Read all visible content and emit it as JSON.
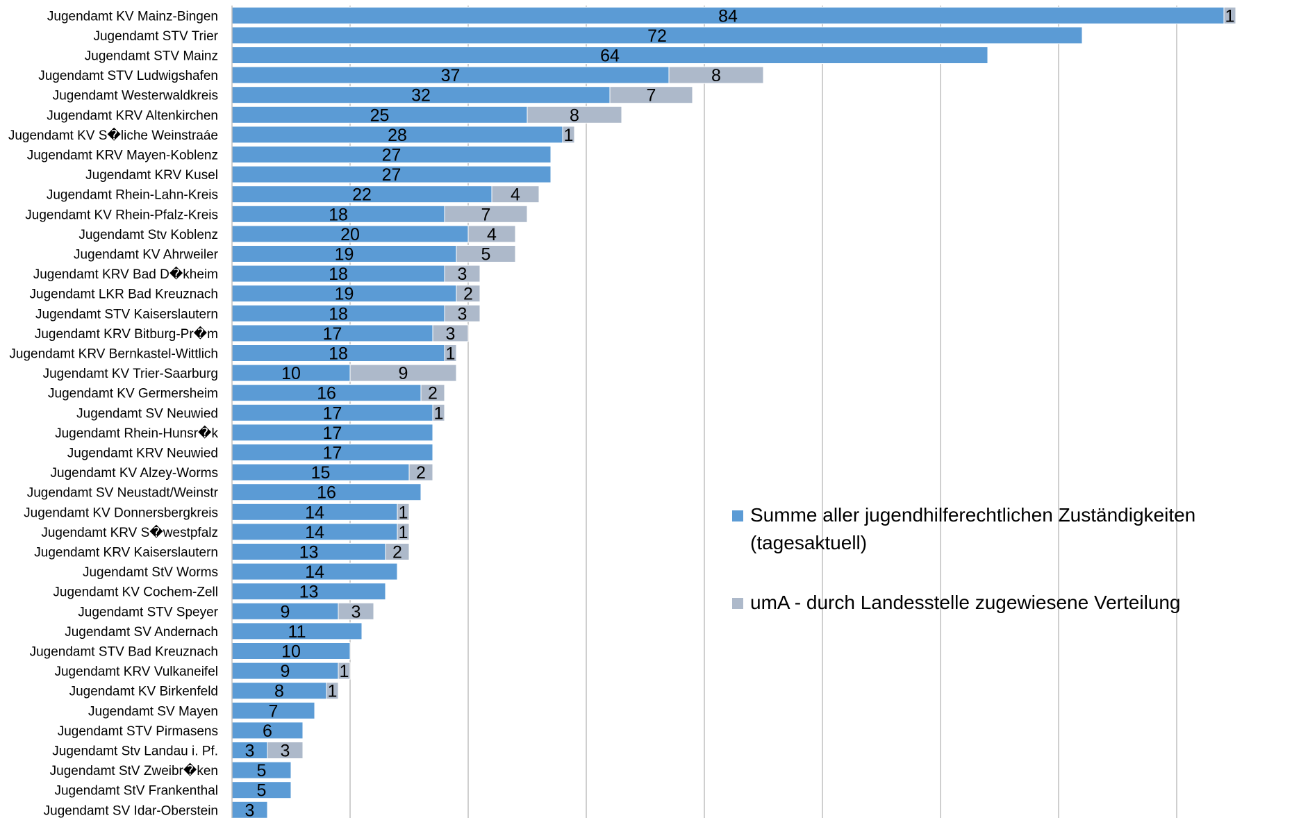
{
  "chart_data": {
    "type": "bar",
    "orientation": "horizontal",
    "stacked": true,
    "categories": [
      "Jugendamt KV Mainz-Bingen",
      "Jugendamt STV Trier",
      "Jugendamt STV Mainz",
      "Jugendamt STV Ludwigshafen",
      "Jugendamt Westerwaldkreis",
      "Jugendamt KRV Altenkirchen",
      "Jugendamt KV S�liche Weinstraáe",
      "Jugendamt KRV Mayen-Koblenz",
      "Jugendamt KRV Kusel",
      "Jugendamt Rhein-Lahn-Kreis",
      "Jugendamt KV Rhein-Pfalz-Kreis",
      "Jugendamt Stv Koblenz",
      "Jugendamt KV Ahrweiler",
      "Jugendamt KRV Bad D�kheim",
      "Jugendamt LKR Bad Kreuznach",
      "Jugendamt STV Kaiserslautern",
      "Jugendamt KRV Bitburg-Pr�m",
      "Jugendamt KRV Bernkastel-Wittlich",
      "Jugendamt KV Trier-Saarburg",
      "Jugendamt KV Germersheim",
      "Jugendamt SV Neuwied",
      "Jugendamt Rhein-Hunsr�k",
      "Jugendamt KRV Neuwied",
      "Jugendamt KV Alzey-Worms",
      "Jugendamt SV Neustadt/Weinstr",
      "Jugendamt KV Donnersbergkreis",
      "Jugendamt KRV S�westpfalz",
      "Jugendamt KRV Kaiserslautern",
      "Jugendamt StV Worms",
      "Jugendamt KV Cochem-Zell",
      "Jugendamt STV Speyer",
      "Jugendamt SV Andernach",
      "Jugendamt STV Bad Kreuznach",
      "Jugendamt KRV Vulkaneifel",
      "Jugendamt KV Birkenfeld",
      "Jugendamt SV Mayen",
      "Jugendamt STV Pirmasens",
      "Jugendamt Stv Landau i. Pf.",
      "Jugendamt StV Zweibr�ken",
      "Jugendamt StV Frankenthal",
      "Jugendamt SV Idar-Oberstein"
    ],
    "series": [
      {
        "name": "Summe aller jugendhilferechtlichen Zuständigkeiten (tagesaktuell)",
        "color": "#5B9BD5",
        "values": [
          84,
          72,
          64,
          37,
          32,
          25,
          28,
          27,
          27,
          22,
          18,
          20,
          19,
          18,
          19,
          18,
          17,
          18,
          10,
          16,
          17,
          17,
          17,
          15,
          16,
          14,
          14,
          13,
          14,
          13,
          9,
          11,
          10,
          9,
          8,
          7,
          6,
          3,
          5,
          5,
          3
        ]
      },
      {
        "name": "umA - durch Landesstelle zugewiesene Verteilung",
        "color": "#ADB9CA",
        "values": [
          1,
          0,
          0,
          8,
          7,
          8,
          1,
          0,
          0,
          4,
          7,
          4,
          5,
          3,
          2,
          3,
          3,
          1,
          9,
          2,
          1,
          0,
          0,
          2,
          0,
          1,
          1,
          2,
          0,
          0,
          3,
          0,
          0,
          1,
          1,
          0,
          0,
          3,
          0,
          0,
          0
        ]
      }
    ],
    "xlim": [
      0,
      90
    ],
    "grid": true,
    "legend_position": "right-middle"
  }
}
